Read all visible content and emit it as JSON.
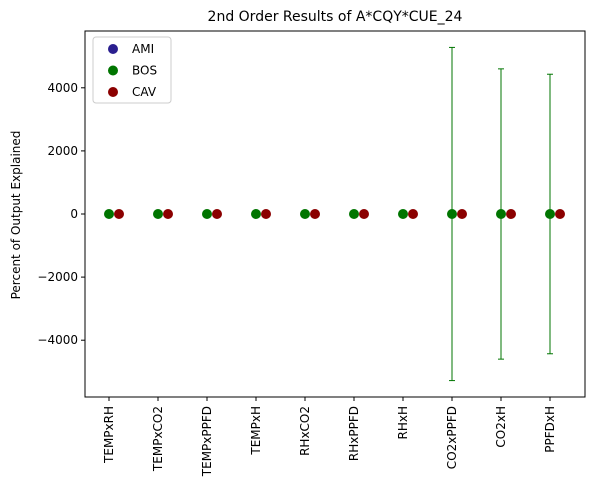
{
  "chart_data": {
    "type": "scatter",
    "title": "2nd Order Results of A*CQY*CUE_24",
    "xlabel": "",
    "ylabel": "Percent of Output Explained",
    "ylim": [
      -5800,
      5800
    ],
    "yticks": [
      -4000,
      -2000,
      0,
      2000,
      4000
    ],
    "ytick_labels": [
      "−4000",
      "−2000",
      "0",
      "2000",
      "4000"
    ],
    "categories": [
      "TEMPxRH",
      "TEMPxCO2",
      "TEMPxPPFD",
      "TEMPxH",
      "RHxCO2",
      "RHxPPFD",
      "RHxH",
      "CO2xPPFD",
      "CO2xH",
      "PPFDxH"
    ],
    "legend_position": "upper-left",
    "grid": false,
    "series": [
      {
        "name": "AMI",
        "color": "#2a1f8f",
        "values": [],
        "errors": []
      },
      {
        "name": "BOS",
        "color": "#007500",
        "values": [
          0,
          0,
          0,
          0,
          0,
          0,
          0,
          0,
          0,
          0
        ],
        "errors": [
          0,
          0,
          0,
          0,
          0,
          0,
          0,
          5280,
          4600,
          4430
        ]
      },
      {
        "name": "CAV",
        "color": "#8b0000",
        "values": [
          0,
          0,
          0,
          0,
          0,
          0,
          0,
          0,
          0,
          0
        ],
        "errors": [
          0,
          0,
          0,
          0,
          0,
          0,
          0,
          0,
          0,
          0
        ]
      }
    ]
  }
}
